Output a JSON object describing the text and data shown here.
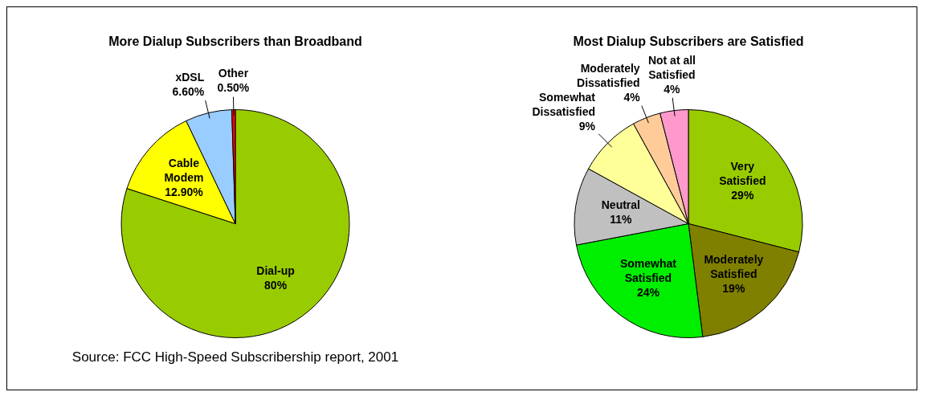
{
  "chart_data": [
    {
      "type": "pie",
      "title": "More Dialup Subscribers than Broadband",
      "categories": [
        "Dial-up",
        "Cable Modem",
        "xDSL",
        "Other"
      ],
      "values": [
        80,
        12.9,
        6.6,
        0.5
      ],
      "colors": [
        "#99cc00",
        "#ffff00",
        "#99ccff",
        "#ff0000"
      ],
      "value_labels": [
        "80%",
        "12.90%",
        "6.60%",
        "0.50%"
      ],
      "annotations": [
        "Source: FCC High-Speed Subscribership report, 2001"
      ]
    },
    {
      "type": "pie",
      "title": "Most Dialup Subscribers are Satisfied",
      "categories": [
        "Very Satisfied",
        "Moderately Satisfied",
        "Somewhat Satisfied",
        "Neutral",
        "Somewhat Dissatisfied",
        "Moderately Dissatisfied",
        "Not at all Satisfied"
      ],
      "values": [
        29,
        19,
        24,
        11,
        9,
        4,
        4
      ],
      "colors": [
        "#99cc00",
        "#808000",
        "#00ee00",
        "#c0c0c0",
        "#ffff99",
        "#ffcc99",
        "#ff99cc"
      ],
      "value_labels": [
        "29%",
        "19%",
        "24%",
        "11%",
        "9%",
        "4%",
        "4%"
      ]
    }
  ]
}
